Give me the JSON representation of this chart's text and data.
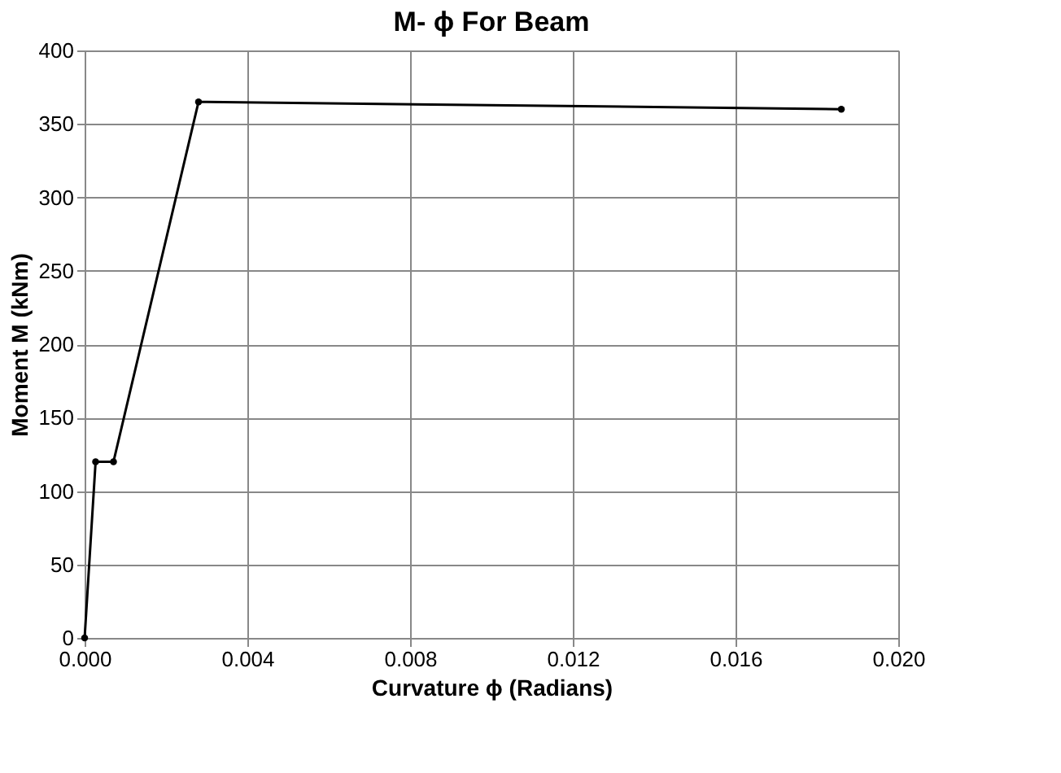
{
  "chart_data": {
    "type": "line",
    "title": "M- ϕ For Beam",
    "xlabel": "Curvature ϕ  (Radians)",
    "ylabel": "Moment  M (kNm)",
    "x": [
      0,
      0.00027,
      0.00071,
      0.0028,
      0.0186
    ],
    "series": [
      {
        "color": "#000000",
        "values": [
          0,
          120,
          120,
          365,
          360
        ]
      }
    ],
    "xlim": [
      0,
      0.02
    ],
    "xticks": [
      {
        "value": 0,
        "label": "0.000"
      },
      {
        "value": 0.004,
        "label": "0.004"
      },
      {
        "value": 0.008,
        "label": "0.008"
      },
      {
        "value": 0.012,
        "label": "0.012"
      },
      {
        "value": 0.016,
        "label": "0.016"
      },
      {
        "value": 0.02,
        "label": "0.020"
      }
    ],
    "ylim": [
      0,
      400
    ],
    "yticks": [
      0,
      50,
      100,
      150,
      200,
      250,
      300,
      350,
      400
    ],
    "grid": true,
    "marker": "circle"
  }
}
